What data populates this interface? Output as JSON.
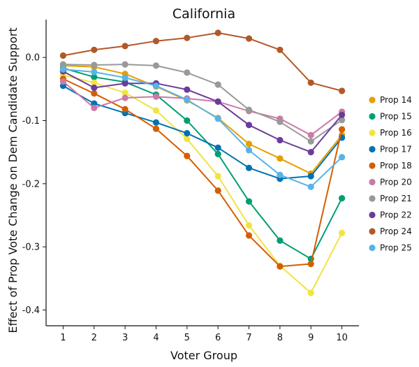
{
  "chart_data": {
    "type": "line",
    "title": "California",
    "xlabel": "Voter Group",
    "ylabel": "Effect of Prop Vote Change on Dem Candidate Support",
    "x": [
      1,
      2,
      3,
      4,
      5,
      6,
      7,
      8,
      9,
      10
    ],
    "xticks": [
      "1",
      "2",
      "3",
      "4",
      "5",
      "6",
      "7",
      "8",
      "9",
      "10"
    ],
    "yticks": [
      0.0,
      -0.1,
      -0.2,
      -0.3,
      -0.4
    ],
    "ytick_labels": [
      "0.0",
      "-0.1",
      "-0.2",
      "-0.3",
      "-0.4"
    ],
    "xlim": [
      0.45,
      10.55
    ],
    "ylim": [
      -0.425,
      0.06
    ],
    "legend_position": "right",
    "series": [
      {
        "name": "Prop 14",
        "color": "#E69F00",
        "values": [
          -0.013,
          -0.015,
          -0.026,
          -0.046,
          -0.068,
          -0.096,
          -0.137,
          -0.16,
          -0.184,
          -0.123
        ]
      },
      {
        "name": "Prop 15",
        "color": "#009E73",
        "values": [
          -0.017,
          -0.031,
          -0.039,
          -0.059,
          -0.1,
          -0.153,
          -0.228,
          -0.29,
          -0.319,
          -0.223
        ]
      },
      {
        "name": "Prop 16",
        "color": "#F0E442",
        "values": [
          -0.028,
          -0.04,
          -0.056,
          -0.084,
          -0.129,
          -0.188,
          -0.266,
          -0.33,
          -0.373,
          -0.278
        ]
      },
      {
        "name": "Prop 17",
        "color": "#0072B2",
        "values": [
          -0.045,
          -0.073,
          -0.088,
          -0.103,
          -0.12,
          -0.143,
          -0.175,
          -0.192,
          -0.188,
          -0.127
        ]
      },
      {
        "name": "Prop 18",
        "color": "#D55E00",
        "values": [
          -0.034,
          -0.057,
          -0.082,
          -0.113,
          -0.156,
          -0.211,
          -0.282,
          -0.331,
          -0.327,
          -0.114
        ]
      },
      {
        "name": "Prop 20",
        "color": "#CC79A7",
        "values": [
          -0.038,
          -0.08,
          -0.064,
          -0.062,
          -0.065,
          -0.07,
          -0.085,
          -0.097,
          -0.123,
          -0.086
        ]
      },
      {
        "name": "Prop 21",
        "color": "#999999",
        "values": [
          -0.011,
          -0.012,
          -0.011,
          -0.013,
          -0.024,
          -0.043,
          -0.083,
          -0.102,
          -0.133,
          -0.099
        ]
      },
      {
        "name": "Prop 22",
        "color": "#6A3D9A",
        "values": [
          -0.022,
          -0.048,
          -0.041,
          -0.041,
          -0.051,
          -0.07,
          -0.107,
          -0.131,
          -0.15,
          -0.091
        ]
      },
      {
        "name": "Prop 24",
        "color": "#B15928",
        "values": [
          0.003,
          0.012,
          0.018,
          0.026,
          0.031,
          0.039,
          0.03,
          0.012,
          -0.04,
          -0.053
        ]
      },
      {
        "name": "Prop 25",
        "color": "#56B4E9",
        "values": [
          -0.019,
          -0.023,
          -0.032,
          -0.045,
          -0.067,
          -0.097,
          -0.147,
          -0.186,
          -0.205,
          -0.158
        ]
      }
    ]
  }
}
